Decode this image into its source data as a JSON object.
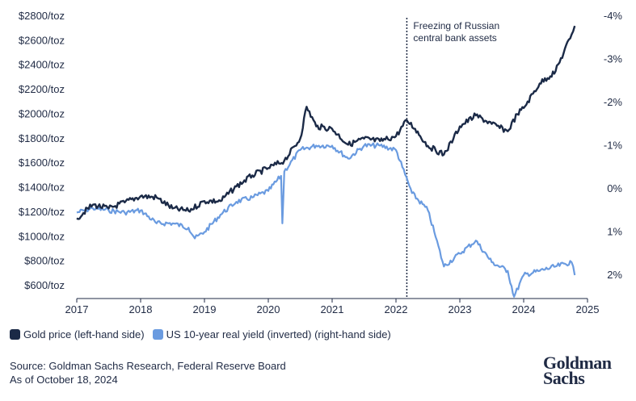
{
  "chart_data": {
    "type": "line",
    "title": "",
    "left_axis": {
      "ylim": [
        600,
        2800
      ],
      "ticks": [
        600,
        800,
        1000,
        1200,
        1400,
        1600,
        1800,
        2000,
        2200,
        2400,
        2600,
        2800
      ],
      "tick_labels": [
        "$600/toz",
        "$800/toz",
        "$1000/toz",
        "$1200/toz",
        "$1400/toz",
        "$1600/toz",
        "$1800/toz",
        "$2000/toz",
        "$2200/toz",
        "$2400/toz",
        "$2600/toz",
        "$2800/toz"
      ]
    },
    "right_axis": {
      "inverted": true,
      "ylim": [
        2.5,
        -4
      ],
      "ticks": [
        2,
        1,
        0,
        -1,
        -2,
        -3,
        -4
      ],
      "tick_labels": [
        "2%",
        "1%",
        "0%",
        "-1%",
        "-2%",
        "-3%",
        "-4%"
      ]
    },
    "x_axis": {
      "xlim": [
        2017,
        2025
      ],
      "ticks": [
        2017,
        2018,
        2019,
        2020,
        2021,
        2022,
        2023,
        2024,
        2025
      ],
      "tick_labels": [
        "2017",
        "2018",
        "2019",
        "2020",
        "2021",
        "2022",
        "2023",
        "2024",
        "2025"
      ]
    },
    "annotation": {
      "x": 2022.17,
      "lines": [
        "Freezing of Russian",
        "central bank assets"
      ]
    },
    "series": [
      {
        "name": "Gold price (left-hand side)",
        "axis": "left",
        "color": "#1b2a47",
        "x": [
          2017.0,
          2017.25,
          2017.5,
          2017.75,
          2018.0,
          2018.25,
          2018.5,
          2018.75,
          2019.0,
          2019.25,
          2019.5,
          2019.75,
          2020.0,
          2020.25,
          2020.5,
          2020.6,
          2020.75,
          2021.0,
          2021.25,
          2021.5,
          2021.75,
          2022.0,
          2022.17,
          2022.3,
          2022.5,
          2022.75,
          2022.9,
          2023.0,
          2023.25,
          2023.5,
          2023.75,
          2023.9,
          2024.0,
          2024.25,
          2024.5,
          2024.75,
          2024.8
        ],
        "values": [
          1150,
          1260,
          1230,
          1280,
          1330,
          1320,
          1230,
          1210,
          1290,
          1290,
          1410,
          1500,
          1560,
          1620,
          1800,
          2060,
          1900,
          1880,
          1750,
          1800,
          1780,
          1820,
          1950,
          1880,
          1740,
          1670,
          1800,
          1900,
          1990,
          1920,
          1860,
          2000,
          2050,
          2250,
          2350,
          2650,
          2720
        ]
      },
      {
        "name": "US 10-year real yield (inverted) (right-hand side)",
        "axis": "right",
        "color": "#6a9be0",
        "x": [
          2017.0,
          2017.25,
          2017.5,
          2017.75,
          2018.0,
          2018.25,
          2018.5,
          2018.75,
          2018.85,
          2019.0,
          2019.25,
          2019.5,
          2019.75,
          2020.0,
          2020.2,
          2020.22,
          2020.25,
          2020.5,
          2020.75,
          2021.0,
          2021.25,
          2021.5,
          2021.75,
          2022.0,
          2022.1,
          2022.25,
          2022.5,
          2022.6,
          2022.75,
          2023.0,
          2023.25,
          2023.5,
          2023.75,
          2023.85,
          2024.0,
          2024.25,
          2024.5,
          2024.75,
          2024.8
        ],
        "values": [
          0.55,
          0.45,
          0.5,
          0.55,
          0.5,
          0.8,
          0.8,
          0.9,
          1.15,
          1.0,
          0.6,
          0.3,
          0.2,
          0.05,
          -0.3,
          0.8,
          -0.4,
          -0.9,
          -1.0,
          -1.0,
          -0.7,
          -1.0,
          -1.0,
          -0.9,
          -0.5,
          0.1,
          0.5,
          1.0,
          1.8,
          1.5,
          1.2,
          1.7,
          1.9,
          2.5,
          2.0,
          1.9,
          1.8,
          1.7,
          2.0
        ]
      }
    ]
  },
  "legend": {
    "gold_label": "Gold price (left-hand side)",
    "gold_color": "#1b2a47",
    "yield_label": "US 10-year real yield (inverted) (right-hand side)",
    "yield_color": "#6a9be0"
  },
  "footer": {
    "source": "Source: Goldman Sachs Research, Federal Reserve Board",
    "asof": "As of October 18, 2024"
  },
  "logo": {
    "line1": "Goldman",
    "line2": "Sachs"
  }
}
